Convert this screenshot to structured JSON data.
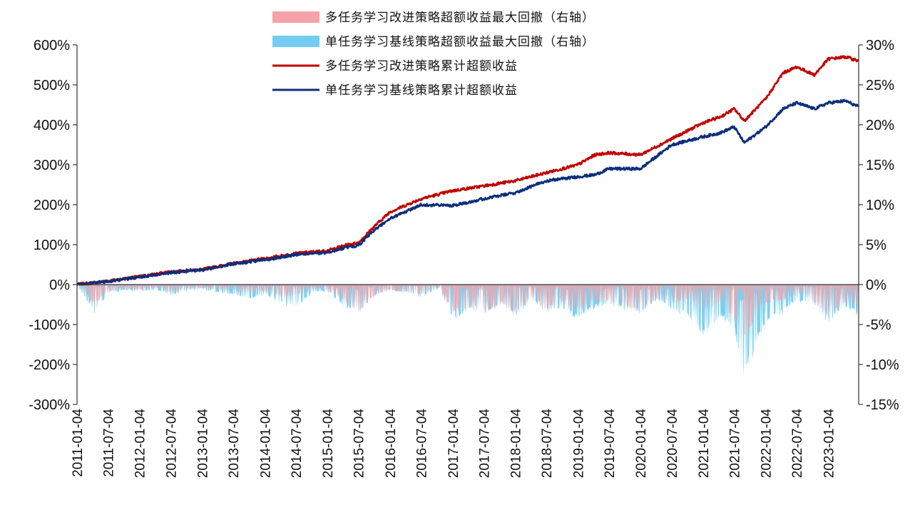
{
  "chart_data": {
    "type": "line",
    "legend_position": "top-center",
    "legend": [
      {
        "key": "dd_multi",
        "label": "多任务学习改进策略超额收益最大回撤（右轴）",
        "kind": "area",
        "color": "#f4a3a8"
      },
      {
        "key": "dd_single",
        "label": "单任务学习基线策略超额收益最大回撤（右轴）",
        "kind": "area",
        "color": "#74cdf0"
      },
      {
        "key": "cum_multi",
        "label": "多任务学习改进策略累计超额收益",
        "kind": "line",
        "color": "#c00000"
      },
      {
        "key": "cum_single",
        "label": "单任务学习基线策略累计超额收益",
        "kind": "line",
        "color": "#0d2f7a"
      }
    ],
    "left_axis": {
      "min": -300,
      "max": 600,
      "ticks": [
        "600%",
        "500%",
        "400%",
        "300%",
        "200%",
        "100%",
        "0%",
        "-100%",
        "-200%",
        "-300%"
      ]
    },
    "right_axis": {
      "min": -15,
      "max": 30,
      "ticks": [
        "30%",
        "25%",
        "20%",
        "15%",
        "10%",
        "5%",
        "0%",
        "-5%",
        "-10%",
        "-15%"
      ]
    },
    "x_axis": {
      "start": "2011-01-04",
      "end": "2023-06-30",
      "tick_labels": [
        "2011-01-04",
        "2011-07-04",
        "2012-01-04",
        "2012-07-04",
        "2013-01-04",
        "2013-07-04",
        "2014-01-04",
        "2014-07-04",
        "2015-01-04",
        "2015-07-04",
        "2016-01-04",
        "2016-07-04",
        "2017-01-04",
        "2017-07-04",
        "2018-01-04",
        "2018-07-04",
        "2019-01-04",
        "2019-07-04",
        "2020-01-04",
        "2020-07-04",
        "2021-01-04",
        "2021-07-04",
        "2022-01-04",
        "2022-07-04",
        "2023-01-04"
      ]
    },
    "series": [
      {
        "name": "多任务学习改进策略累计超额收益",
        "axis": "left",
        "unit": "%",
        "dates": [
          "2011-01-04",
          "2011-07-04",
          "2012-01-04",
          "2012-07-04",
          "2013-01-04",
          "2013-07-04",
          "2014-01-04",
          "2014-07-04",
          "2015-01-04",
          "2015-04-15",
          "2015-07-04",
          "2015-10-15",
          "2016-01-04",
          "2016-07-04",
          "2017-01-04",
          "2017-07-04",
          "2018-01-04",
          "2018-07-04",
          "2019-01-04",
          "2019-04-15",
          "2019-07-04",
          "2020-01-04",
          "2020-07-04",
          "2021-01-04",
          "2021-04-15",
          "2021-07-04",
          "2021-09-01",
          "2022-01-04",
          "2022-04-15",
          "2022-07-04",
          "2022-10-15",
          "2023-01-04",
          "2023-04-15",
          "2023-06-30"
        ],
        "values": [
          0,
          9,
          20,
          32,
          38,
          53,
          65,
          78,
          85,
          98,
          105,
          150,
          182,
          215,
          235,
          247,
          260,
          280,
          300,
          325,
          330,
          325,
          365,
          405,
          420,
          440,
          410,
          465,
          530,
          545,
          525,
          565,
          570,
          560
        ]
      },
      {
        "name": "单任务学习基线策略累计超额收益",
        "axis": "left",
        "unit": "%",
        "dates": [
          "2011-01-04",
          "2011-07-04",
          "2012-01-04",
          "2012-07-04",
          "2013-01-04",
          "2013-07-04",
          "2014-01-04",
          "2014-07-04",
          "2015-01-04",
          "2015-04-15",
          "2015-07-04",
          "2015-10-15",
          "2016-01-04",
          "2016-07-04",
          "2017-01-04",
          "2017-07-04",
          "2018-01-04",
          "2018-07-04",
          "2019-01-04",
          "2019-04-15",
          "2019-07-04",
          "2020-01-04",
          "2020-07-04",
          "2021-01-04",
          "2021-04-15",
          "2021-07-04",
          "2021-09-01",
          "2022-01-04",
          "2022-04-15",
          "2022-07-04",
          "2022-10-15",
          "2023-01-04",
          "2023-04-15",
          "2023-06-30"
        ],
        "values": [
          0,
          8,
          19,
          30,
          36,
          52,
          62,
          75,
          80,
          92,
          98,
          140,
          165,
          200,
          198,
          215,
          230,
          260,
          270,
          275,
          290,
          290,
          350,
          370,
          380,
          395,
          355,
          395,
          440,
          455,
          440,
          455,
          460,
          445
        ]
      },
      {
        "name": "多任务学习改进策略超额收益最大回撤（右轴）",
        "axis": "right",
        "unit": "%",
        "type": "area",
        "dates": [
          "2011-01-04",
          "2011-04-15",
          "2011-07-04",
          "2011-10-15",
          "2012-01-04",
          "2012-04-15",
          "2012-07-04",
          "2012-10-15",
          "2013-01-04",
          "2013-04-15",
          "2013-07-04",
          "2013-10-15",
          "2014-01-04",
          "2014-04-15",
          "2014-07-04",
          "2014-10-15",
          "2015-01-04",
          "2015-04-15",
          "2015-07-04",
          "2015-10-15",
          "2016-01-04",
          "2016-04-15",
          "2016-07-04",
          "2016-10-15",
          "2017-01-04",
          "2017-04-15",
          "2017-07-04",
          "2017-10-15",
          "2018-01-04",
          "2018-04-15",
          "2018-07-04",
          "2018-10-15",
          "2019-01-04",
          "2019-04-15",
          "2019-07-04",
          "2019-10-15",
          "2020-01-04",
          "2020-04-15",
          "2020-07-04",
          "2020-10-15",
          "2021-01-04",
          "2021-04-15",
          "2021-07-04",
          "2021-09-01",
          "2021-11-15",
          "2022-01-04",
          "2022-04-15",
          "2022-07-04",
          "2022-10-15",
          "2023-01-04",
          "2023-04-15",
          "2023-06-30"
        ],
        "values": [
          0,
          -2.2,
          -0.8,
          -0.5,
          -0.6,
          -0.4,
          -0.9,
          -0.5,
          -0.4,
          -0.6,
          -0.7,
          -1.0,
          -0.8,
          -1.4,
          -1.2,
          -0.5,
          -0.6,
          -2.0,
          -3.3,
          -1.0,
          -0.6,
          -0.8,
          -1.2,
          -0.3,
          -3.0,
          -2.5,
          -3.2,
          -2.0,
          -3.2,
          -1.5,
          -2.8,
          -2.2,
          -3.0,
          -2.0,
          -1.8,
          -2.4,
          -3.2,
          -1.5,
          -2.2,
          -1.6,
          -3.0,
          -2.0,
          -4.0,
          -6.5,
          -3.0,
          -2.0,
          -1.8,
          -1.0,
          -2.0,
          -3.6,
          -2.0,
          -2.4
        ]
      },
      {
        "name": "单任务学习基线策略超额收益最大回撤（右轴）",
        "axis": "right",
        "unit": "%",
        "type": "area",
        "dates": [
          "2011-01-04",
          "2011-04-15",
          "2011-07-04",
          "2011-10-15",
          "2012-01-04",
          "2012-04-15",
          "2012-07-04",
          "2012-10-15",
          "2013-01-04",
          "2013-04-15",
          "2013-07-04",
          "2013-10-15",
          "2014-01-04",
          "2014-04-15",
          "2014-07-04",
          "2014-10-15",
          "2015-01-04",
          "2015-04-15",
          "2015-07-04",
          "2015-10-15",
          "2016-01-04",
          "2016-04-15",
          "2016-07-04",
          "2016-10-15",
          "2017-01-04",
          "2017-04-15",
          "2017-07-04",
          "2017-10-15",
          "2018-01-04",
          "2018-04-15",
          "2018-07-04",
          "2018-10-15",
          "2019-01-04",
          "2019-04-15",
          "2019-07-04",
          "2019-10-15",
          "2020-01-04",
          "2020-04-15",
          "2020-07-04",
          "2020-10-15",
          "2021-01-04",
          "2021-04-15",
          "2021-07-04",
          "2021-09-01",
          "2021-11-15",
          "2022-01-04",
          "2022-04-15",
          "2022-07-04",
          "2022-10-15",
          "2023-01-04",
          "2023-04-15",
          "2023-06-30"
        ],
        "values": [
          0,
          -3.2,
          -1.0,
          -0.6,
          -0.8,
          -0.6,
          -1.2,
          -0.7,
          -0.5,
          -0.9,
          -1.1,
          -1.5,
          -1.1,
          -2.2,
          -2.5,
          -0.8,
          -0.8,
          -2.5,
          -3.0,
          -1.2,
          -0.7,
          -0.9,
          -1.4,
          -0.4,
          -3.8,
          -2.9,
          -3.3,
          -2.2,
          -3.5,
          -1.8,
          -3.0,
          -2.6,
          -3.8,
          -2.5,
          -2.3,
          -2.8,
          -3.0,
          -1.7,
          -2.8,
          -3.6,
          -5.6,
          -3.5,
          -5.0,
          -10.0,
          -6.5,
          -4.0,
          -3.0,
          -1.8,
          -2.4,
          -4.2,
          -2.5,
          -3.5
        ]
      }
    ]
  }
}
